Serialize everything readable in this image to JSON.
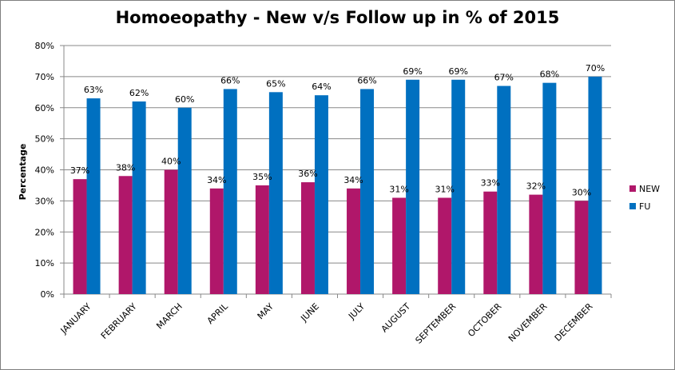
{
  "chart_data": {
    "type": "bar",
    "title": "Homoeopathy - New v/s Follow up in % of 2015",
    "xlabel": "",
    "ylabel": "Percentage",
    "ylim": [
      0,
      80
    ],
    "yticks": [
      "0%",
      "10%",
      "20%",
      "30%",
      "40%",
      "50%",
      "60%",
      "70%",
      "80%"
    ],
    "grid": true,
    "legend_position": "right",
    "categories": [
      "JANUARY",
      "FEBRUARY",
      "MARCH",
      "APRIL",
      "MAY",
      "JUNE",
      "JULY",
      "AUGUST",
      "SEPTEMBER",
      "OCTOBER",
      "NOVEMBER",
      "DECEMBER"
    ],
    "series": [
      {
        "name": "NEW",
        "color": "#b0176a",
        "values": [
          37,
          38,
          40,
          34,
          35,
          36,
          34,
          31,
          31,
          33,
          32,
          30
        ],
        "labels": [
          "37%",
          "38%",
          "40%",
          "34%",
          "35%",
          "36%",
          "34%",
          "31%",
          "31%",
          "33%",
          "32%",
          "30%"
        ]
      },
      {
        "name": "FU",
        "color": "#0070c0",
        "values": [
          63,
          62,
          60,
          66,
          65,
          64,
          66,
          69,
          69,
          67,
          68,
          70
        ],
        "labels": [
          "63%",
          "62%",
          "60%",
          "66%",
          "65%",
          "64%",
          "66%",
          "69%",
          "69%",
          "67%",
          "68%",
          "70%"
        ]
      }
    ]
  }
}
